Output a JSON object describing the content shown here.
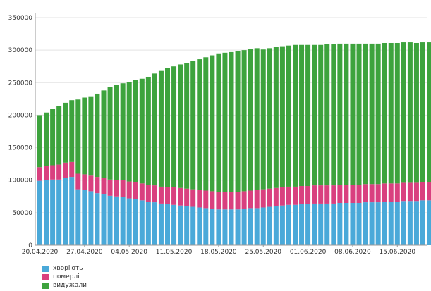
{
  "chart_data": {
    "type": "bar",
    "stacked": true,
    "grid": true,
    "legend_position": "bottom-left",
    "ylim": [
      0,
      350000
    ],
    "yticks": [
      0,
      50000,
      100000,
      150000,
      200000,
      250000,
      300000,
      350000
    ],
    "ytick_labels": [
      "0",
      "50000",
      "100000",
      "150000",
      "200000",
      "250000",
      "300000",
      "350000"
    ],
    "categories": [
      "20.04.2020",
      "21.04.2020",
      "22.04.2020",
      "23.04.2020",
      "24.04.2020",
      "25.04.2020",
      "26.04.2020",
      "27.04.2020",
      "28.04.2020",
      "29.04.2020",
      "30.04.2020",
      "01.05.2020",
      "02.05.2020",
      "03.05.2020",
      "04.05.2020",
      "05.05.2020",
      "06.05.2020",
      "07.05.2020",
      "08.05.2020",
      "09.05.2020",
      "10.05.2020",
      "11.05.2020",
      "12.05.2020",
      "13.05.2020",
      "14.05.2020",
      "15.05.2020",
      "16.05.2020",
      "17.05.2020",
      "18.05.2020",
      "19.05.2020",
      "20.05.2020",
      "21.05.2020",
      "22.05.2020",
      "23.05.2020",
      "24.05.2020",
      "25.05.2020",
      "26.05.2020",
      "27.05.2020",
      "28.05.2020",
      "29.05.2020",
      "30.05.2020",
      "31.05.2020",
      "01.06.2020",
      "02.06.2020",
      "03.06.2020",
      "04.06.2020",
      "05.06.2020",
      "06.06.2020",
      "07.06.2020",
      "08.06.2020",
      "09.06.2020",
      "10.06.2020",
      "11.06.2020",
      "12.06.2020",
      "13.06.2020",
      "14.06.2020",
      "15.06.2020",
      "16.06.2020",
      "17.06.2020",
      "18.06.2020",
      "19.06.2020",
      "20.06.2020"
    ],
    "xtick_labels": [
      {
        "index": 0,
        "label": "20.04.2020"
      },
      {
        "index": 7,
        "label": "27.04.2020"
      },
      {
        "index": 14,
        "label": "04.05.2020"
      },
      {
        "index": 21,
        "label": "11.05.2020"
      },
      {
        "index": 28,
        "label": "18.05.2020"
      },
      {
        "index": 35,
        "label": "25.05.2020"
      },
      {
        "index": 42,
        "label": "01.06.2020"
      },
      {
        "index": 49,
        "label": "08.06.2020"
      },
      {
        "index": 56,
        "label": "15.06.2020"
      }
    ],
    "series": [
      {
        "name": "хворіють",
        "color": "#4aa9d9",
        "values": [
          99000,
          100000,
          101000,
          101000,
          104000,
          105000,
          86000,
          85000,
          83000,
          80000,
          78000,
          76000,
          75000,
          74000,
          72000,
          71000,
          69000,
          67000,
          66000,
          64000,
          63000,
          62000,
          61000,
          60000,
          59000,
          58000,
          57000,
          56000,
          55000,
          55000,
          55000,
          55000,
          56000,
          57000,
          57000,
          58000,
          59000,
          60000,
          61000,
          62000,
          62000,
          63000,
          63000,
          64000,
          64000,
          64000,
          64000,
          65000,
          65000,
          65000,
          65000,
          66000,
          66000,
          66000,
          67000,
          67000,
          67000,
          68000,
          68000,
          68000,
          69000,
          69000
        ]
      },
      {
        "name": "померлі",
        "color": "#d9407f",
        "values": [
          21000,
          22000,
          22000,
          23000,
          23000,
          23000,
          24000,
          24000,
          24000,
          25000,
          25000,
          25000,
          25000,
          26000,
          26000,
          26000,
          26000,
          26000,
          26000,
          26000,
          26000,
          27000,
          27000,
          27000,
          27000,
          27000,
          27000,
          27000,
          27000,
          27000,
          27000,
          27000,
          27000,
          27000,
          28000,
          28000,
          28000,
          28000,
          28000,
          28000,
          28000,
          28000,
          28000,
          28000,
          28000,
          28000,
          28000,
          28000,
          28000,
          28000,
          28000,
          28000,
          28000,
          28000,
          28000,
          28000,
          28000,
          28000,
          28000,
          28000,
          28000,
          28000
        ]
      },
      {
        "name": "видужали",
        "color": "#3da33d",
        "values": [
          80000,
          82000,
          87000,
          90000,
          92000,
          95000,
          114000,
          118000,
          122000,
          128000,
          135000,
          142000,
          146000,
          149000,
          153000,
          157000,
          161000,
          166000,
          172000,
          178000,
          183000,
          186000,
          190000,
          193000,
          197000,
          201000,
          205000,
          209000,
          213000,
          214000,
          215000,
          216000,
          217000,
          218000,
          218000,
          215000,
          216000,
          217000,
          217000,
          217000,
          218000,
          217000,
          217000,
          216000,
          216000,
          217000,
          217000,
          217000,
          217000,
          217000,
          217000,
          216000,
          216000,
          216000,
          216000,
          216000,
          216000,
          216000,
          216000,
          215000,
          215000,
          215000
        ]
      }
    ]
  }
}
